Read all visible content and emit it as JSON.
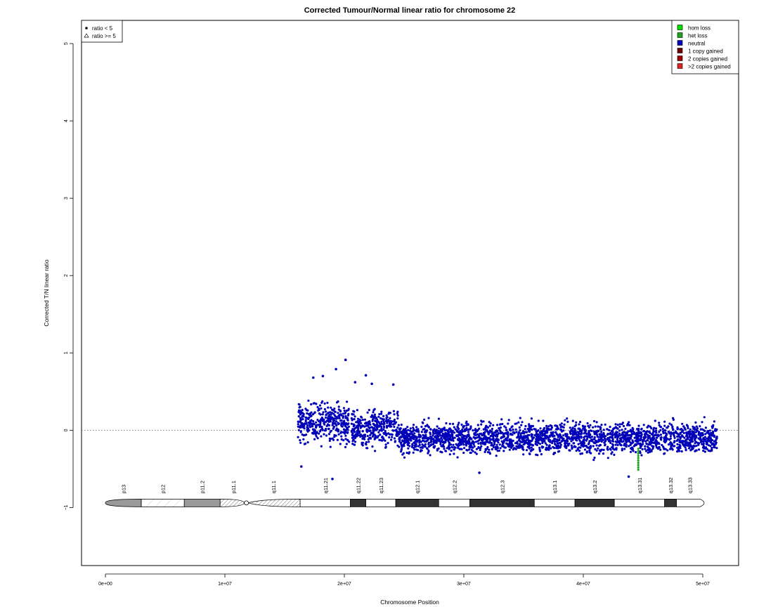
{
  "chart_data": {
    "type": "scatter",
    "title": "Corrected Tumour/Normal linear ratio for chromosome  22",
    "xlabel": "Chromosome Position",
    "ylabel": "Corrected T/N linear ratio",
    "xlim": [
      -2000000,
      53000000
    ],
    "ylim": [
      -1.75,
      5.3
    ],
    "x_ticks": [
      0,
      10000000,
      20000000,
      30000000,
      40000000,
      50000000
    ],
    "x_tick_labels": [
      "0e+00",
      "1e+07",
      "2e+07",
      "3e+07",
      "4e+07",
      "5e+07"
    ],
    "y_ticks": [
      -1,
      0,
      1,
      2,
      3,
      4,
      5
    ],
    "y_tick_labels": [
      "−1",
      "0",
      "1",
      "2",
      "3",
      "4",
      "5"
    ],
    "reference_line_y": 0,
    "grid": false,
    "point_colors": {
      "neutral": "#0000b8",
      "het_loss": "#1fa31f"
    },
    "series": [
      {
        "x_start": 16100000,
        "x_end": 20400000,
        "center": 0.1,
        "spread": 0.22
      },
      {
        "x_start": 20600000,
        "x_end": 24500000,
        "center": 0.02,
        "spread": 0.2
      },
      {
        "x_start": 24500000,
        "x_end": 51200000,
        "center": -0.1,
        "spread": 0.17
      }
    ],
    "outliers": [
      {
        "x": 20100000,
        "y": 0.91
      },
      {
        "x": 19300000,
        "y": 0.79
      },
      {
        "x": 21800000,
        "y": 0.71
      },
      {
        "x": 18200000,
        "y": 0.7
      },
      {
        "x": 17400000,
        "y": 0.68
      },
      {
        "x": 20900000,
        "y": 0.62
      },
      {
        "x": 22300000,
        "y": 0.6
      },
      {
        "x": 24100000,
        "y": 0.59
      },
      {
        "x": 19000000,
        "y": -0.63
      },
      {
        "x": 16400000,
        "y": -0.47
      },
      {
        "x": 43800000,
        "y": -0.6
      },
      {
        "x": 31300000,
        "y": -0.55
      }
    ],
    "het_loss_points": {
      "x": 44600000,
      "y_start": -0.24,
      "y_end": -0.53
    },
    "legend_shape": {
      "entries": [
        {
          "label": "ratio < 5",
          "symbol": "circle"
        },
        {
          "label": "ratio >= 5",
          "symbol": "triangle"
        }
      ],
      "placement": "top-left"
    },
    "legend_state": {
      "entries": [
        {
          "label": "hom loss",
          "color": "#00e000"
        },
        {
          "label": "het loss",
          "color": "#1fa31f"
        },
        {
          "label": "neutral",
          "color": "#0000b8"
        },
        {
          "label": "1 copy gained",
          "color": "#6e0000"
        },
        {
          "label": "2 copies gained",
          "color": "#a00000"
        },
        {
          "label": ">2 copies gained",
          "color": "#e02020"
        }
      ],
      "placement": "top-right"
    },
    "ideogram": {
      "y_value": -0.94,
      "centromere": 11800000,
      "bands": [
        {
          "name": "p13",
          "start": 0,
          "end": 3000000,
          "fill": "gray"
        },
        {
          "name": "p12",
          "start": 3000000,
          "end": 6600000,
          "fill": "stalk"
        },
        {
          "name": "p11.2",
          "start": 6600000,
          "end": 9600000,
          "fill": "gray"
        },
        {
          "name": "p11.1",
          "start": 9600000,
          "end": 11800000,
          "fill": "hatch"
        },
        {
          "name": "q11.1",
          "start": 11800000,
          "end": 16300000,
          "fill": "hatch"
        },
        {
          "name": "q11.21",
          "start": 16300000,
          "end": 20500000,
          "fill": "white"
        },
        {
          "name": "q11.22",
          "start": 20500000,
          "end": 21800000,
          "fill": "black"
        },
        {
          "name": "q11.23",
          "start": 21800000,
          "end": 24300000,
          "fill": "white"
        },
        {
          "name": "q12.1",
          "start": 24300000,
          "end": 27900000,
          "fill": "black"
        },
        {
          "name": "q12.2",
          "start": 27900000,
          "end": 30500000,
          "fill": "white"
        },
        {
          "name": "q12.3",
          "start": 30500000,
          "end": 35900000,
          "fill": "black"
        },
        {
          "name": "q13.1",
          "start": 35900000,
          "end": 39300000,
          "fill": "white"
        },
        {
          "name": "q13.2",
          "start": 39300000,
          "end": 42600000,
          "fill": "black"
        },
        {
          "name": "q13.31",
          "start": 42600000,
          "end": 46800000,
          "fill": "white"
        },
        {
          "name": "q13.32",
          "start": 46800000,
          "end": 47800000,
          "fill": "black"
        },
        {
          "name": "q13.33",
          "start": 47800000,
          "end": 50000000,
          "fill": "white"
        }
      ],
      "labels": [
        "p13",
        "p12",
        "p11.2",
        "p11.1",
        "q11.1",
        "q11.21",
        "q11.22",
        "q11.23",
        "q12.1",
        "q12.2",
        "q12.3",
        "q13.1",
        "q13.2",
        "q13.31",
        "q13.32",
        "q13.33"
      ]
    }
  }
}
